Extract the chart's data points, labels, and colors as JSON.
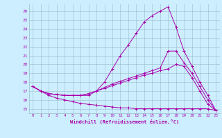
{
  "title": "",
  "xlabel": "Windchill (Refroidissement éolien,°C)",
  "bg_color": "#cceeff",
  "line_color": "#aa00aa",
  "xlim": [
    -0.5,
    23.5
  ],
  "ylim": [
    14.5,
    26.8
  ],
  "xticks": [
    0,
    1,
    2,
    3,
    4,
    5,
    6,
    7,
    8,
    9,
    10,
    11,
    12,
    13,
    14,
    15,
    16,
    17,
    18,
    19,
    20,
    21,
    22,
    23
  ],
  "yticks": [
    15,
    16,
    17,
    18,
    19,
    20,
    21,
    22,
    23,
    24,
    25,
    26
  ],
  "series": [
    {
      "x": [
        0,
        1,
        2,
        3,
        4,
        5,
        6,
        7,
        8,
        9,
        10,
        11,
        12,
        13,
        14,
        15,
        16,
        17,
        18,
        19,
        20,
        21,
        22,
        23
      ],
      "y": [
        17.5,
        17.0,
        16.7,
        16.6,
        16.5,
        16.5,
        16.5,
        16.5,
        17.0,
        18.0,
        19.5,
        21.0,
        22.2,
        23.5,
        24.8,
        25.5,
        26.0,
        26.5,
        24.2,
        21.5,
        19.8,
        18.0,
        16.5,
        14.8
      ]
    },
    {
      "x": [
        0,
        1,
        2,
        3,
        4,
        5,
        6,
        7,
        8,
        9,
        10,
        11,
        12,
        13,
        14,
        15,
        16,
        17,
        18,
        19,
        20,
        21,
        22,
        23
      ],
      "y": [
        17.5,
        17.0,
        16.7,
        16.6,
        16.5,
        16.5,
        16.5,
        16.7,
        17.0,
        17.4,
        17.8,
        18.1,
        18.4,
        18.7,
        19.0,
        19.3,
        19.6,
        21.5,
        21.5,
        20.2,
        19.0,
        17.5,
        16.0,
        14.8
      ]
    },
    {
      "x": [
        0,
        1,
        2,
        3,
        4,
        5,
        6,
        7,
        8,
        9,
        10,
        11,
        12,
        13,
        14,
        15,
        16,
        17,
        18,
        19,
        20,
        21,
        22,
        23
      ],
      "y": [
        17.5,
        17.0,
        16.7,
        16.6,
        16.5,
        16.5,
        16.5,
        16.7,
        17.0,
        17.3,
        17.6,
        17.9,
        18.2,
        18.5,
        18.8,
        19.0,
        19.3,
        19.5,
        20.0,
        19.8,
        18.5,
        17.0,
        15.5,
        14.8
      ]
    },
    {
      "x": [
        0,
        1,
        2,
        3,
        4,
        5,
        6,
        7,
        8,
        9,
        10,
        11,
        12,
        13,
        14,
        15,
        16,
        17,
        18,
        19,
        20,
        21,
        22,
        23
      ],
      "y": [
        17.5,
        17.0,
        16.5,
        16.2,
        16.0,
        15.8,
        15.6,
        15.5,
        15.4,
        15.3,
        15.2,
        15.1,
        15.1,
        15.0,
        15.0,
        15.0,
        15.0,
        15.0,
        15.0,
        15.0,
        15.0,
        15.0,
        15.0,
        14.8
      ]
    }
  ]
}
